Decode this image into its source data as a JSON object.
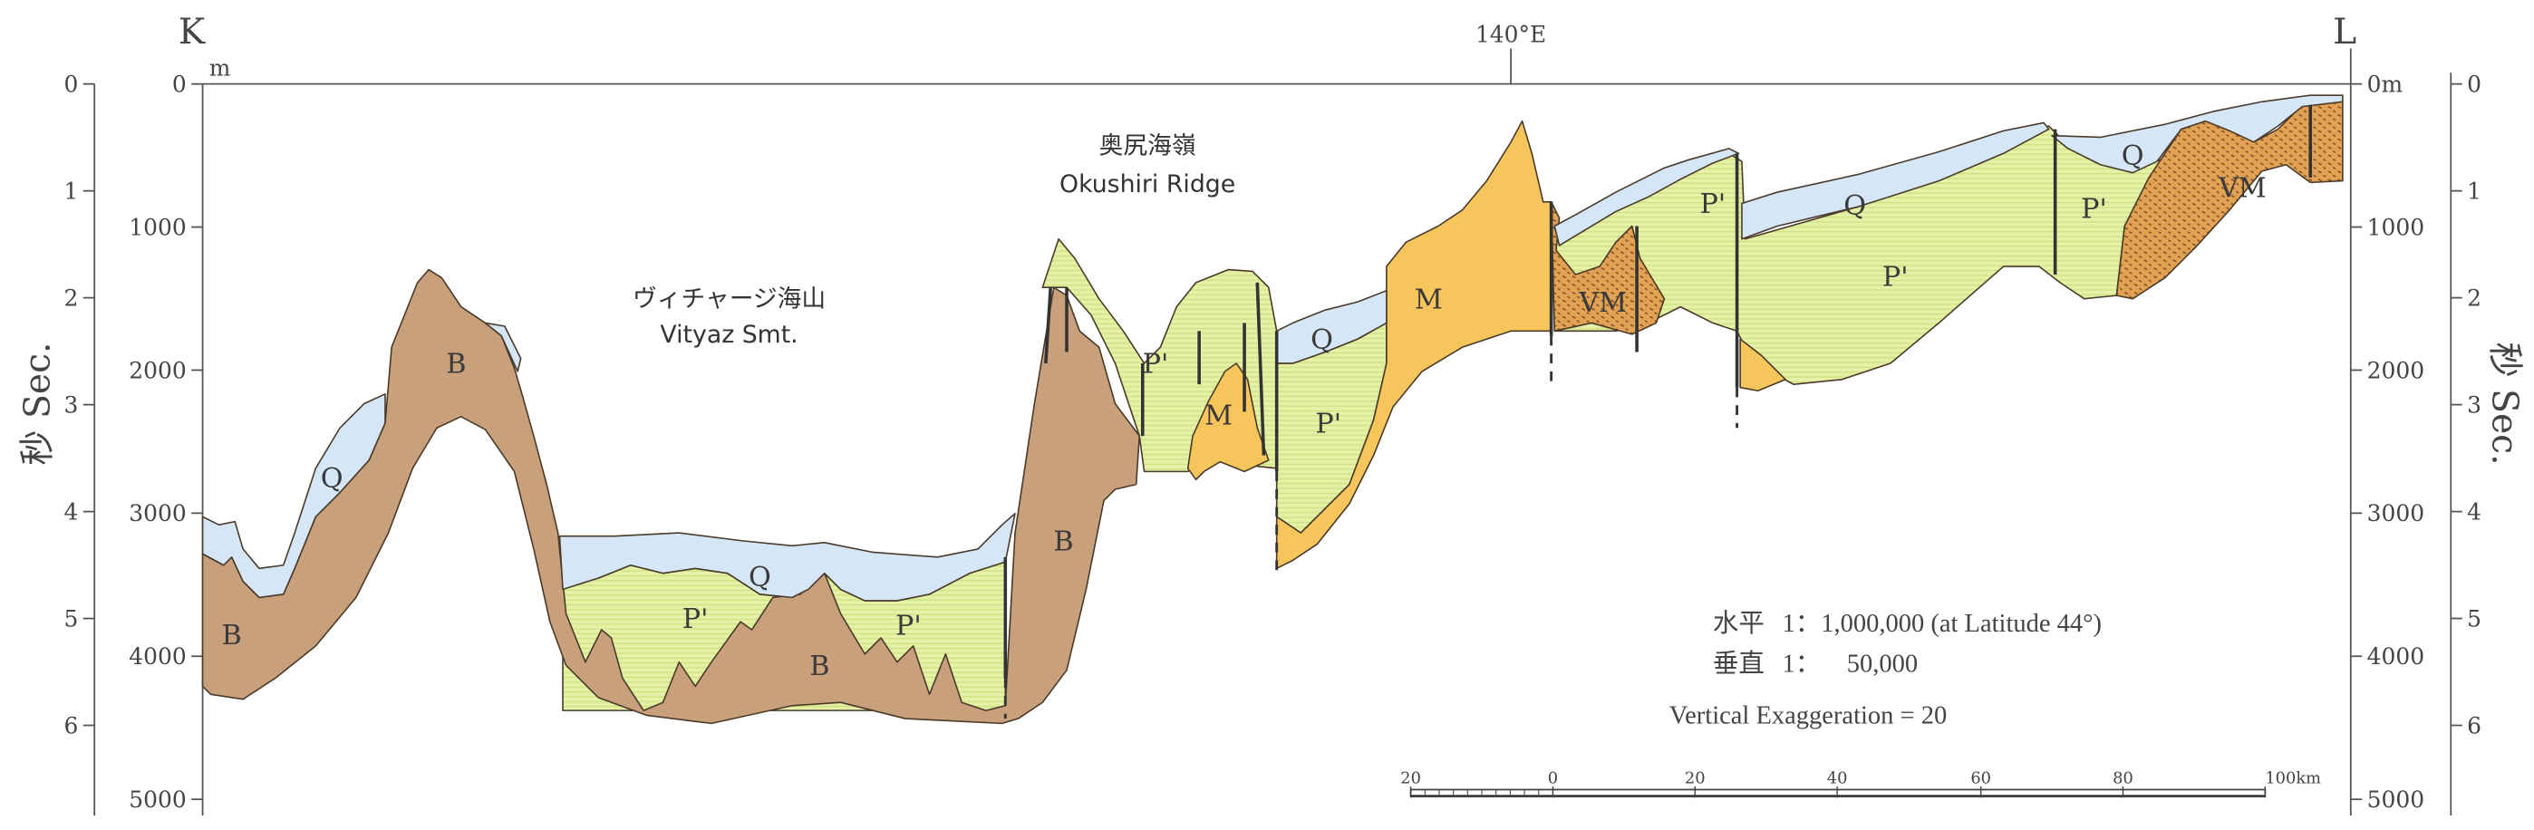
{
  "section": {
    "start_label": "K",
    "end_label": "L",
    "meridian_label": "140°E"
  },
  "axes": {
    "left_seconds": [
      "0",
      "1",
      "2",
      "3",
      "4",
      "5",
      "6"
    ],
    "left_meters": [
      "0",
      "1000",
      "2000",
      "3000",
      "4000",
      "5000"
    ],
    "left_meters_unit": "m",
    "right_meters": [
      "0m",
      "1000",
      "2000",
      "3000",
      "4000",
      "5000"
    ],
    "right_seconds": [
      "0",
      "1",
      "2",
      "3",
      "4",
      "5",
      "6"
    ],
    "seconds_title": "秒 Sec."
  },
  "features": {
    "vityaz_ja": "ヴィチャージ海山",
    "vityaz_en": "Vityaz Smt.",
    "okushiri_ja": "奥尻海嶺",
    "okushiri_en": "Okushiri Ridge"
  },
  "units": {
    "B": "B",
    "Q": "Q",
    "P": "P'",
    "M": "M",
    "VM": "VM"
  },
  "scale": {
    "horizontal_label": "水平",
    "horizontal_value": "1：1,000,000 (at Latitude 44°)",
    "vertical_label": "垂直",
    "vertical_value": "1：    50,000",
    "exaggeration": "Vertical Exaggeration = 20",
    "bar_ticks": [
      "20",
      "0",
      "20",
      "40",
      "60",
      "80",
      "100km"
    ]
  },
  "colors": {
    "Q": "#d5e7f7",
    "P": "#e4f1a6",
    "B": "#c8a07c",
    "M": "#f6c55c",
    "VM": "#e2a253"
  }
}
